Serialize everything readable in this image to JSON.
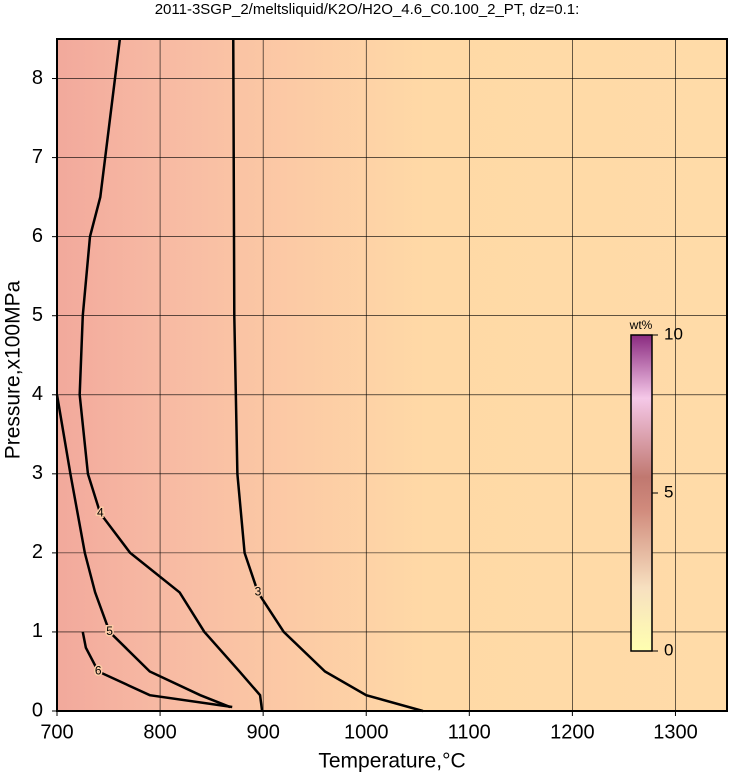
{
  "chart_data": {
    "type": "contour",
    "title": "2011-3SGP_2/meltsliquid/K2O/H2O_4.6_C0.100_2_PT, dz=0.1:",
    "x_label": "Temperature,°C",
    "y_label": "Pressure,x100MPa",
    "xlim": [
      700,
      1350
    ],
    "ylim": [
      0,
      8.5
    ],
    "xticks": [
      700,
      800,
      900,
      1000,
      1100,
      1200,
      1300
    ],
    "yticks": [
      0,
      1,
      2,
      3,
      4,
      5,
      6,
      7,
      8
    ],
    "grid": true,
    "contours": [
      {
        "level": 3,
        "x": [
          871,
          872,
          875,
          882,
          895,
          920,
          960,
          1000,
          1055
        ],
        "y": [
          8.5,
          5,
          3,
          2,
          1.5,
          1,
          0.5,
          0.2,
          0
        ]
      },
      {
        "level": 4,
        "x": [
          761,
          742,
          732,
          725,
          722,
          730,
          742,
          771,
          819,
          843,
          877,
          897,
          899
        ],
        "y": [
          8.5,
          6.5,
          6,
          5,
          4,
          3,
          2.5,
          2,
          1.5,
          1,
          0.5,
          0.2,
          0
        ]
      },
      {
        "level": 5,
        "x": [
          700,
          713,
          727,
          737,
          751,
          790,
          839,
          868
        ],
        "y": [
          4,
          3,
          2,
          1.5,
          1,
          0.5,
          0.2,
          0.05
        ]
      },
      {
        "level": 6,
        "x": [
          725,
          728,
          740,
          790,
          870
        ],
        "y": [
          1.0,
          0.8,
          0.5,
          0.2,
          0.05
        ]
      }
    ],
    "colorbar": {
      "label": "wt%",
      "lim": [
        0,
        10
      ],
      "ticks": [
        0,
        5,
        10
      ]
    }
  }
}
